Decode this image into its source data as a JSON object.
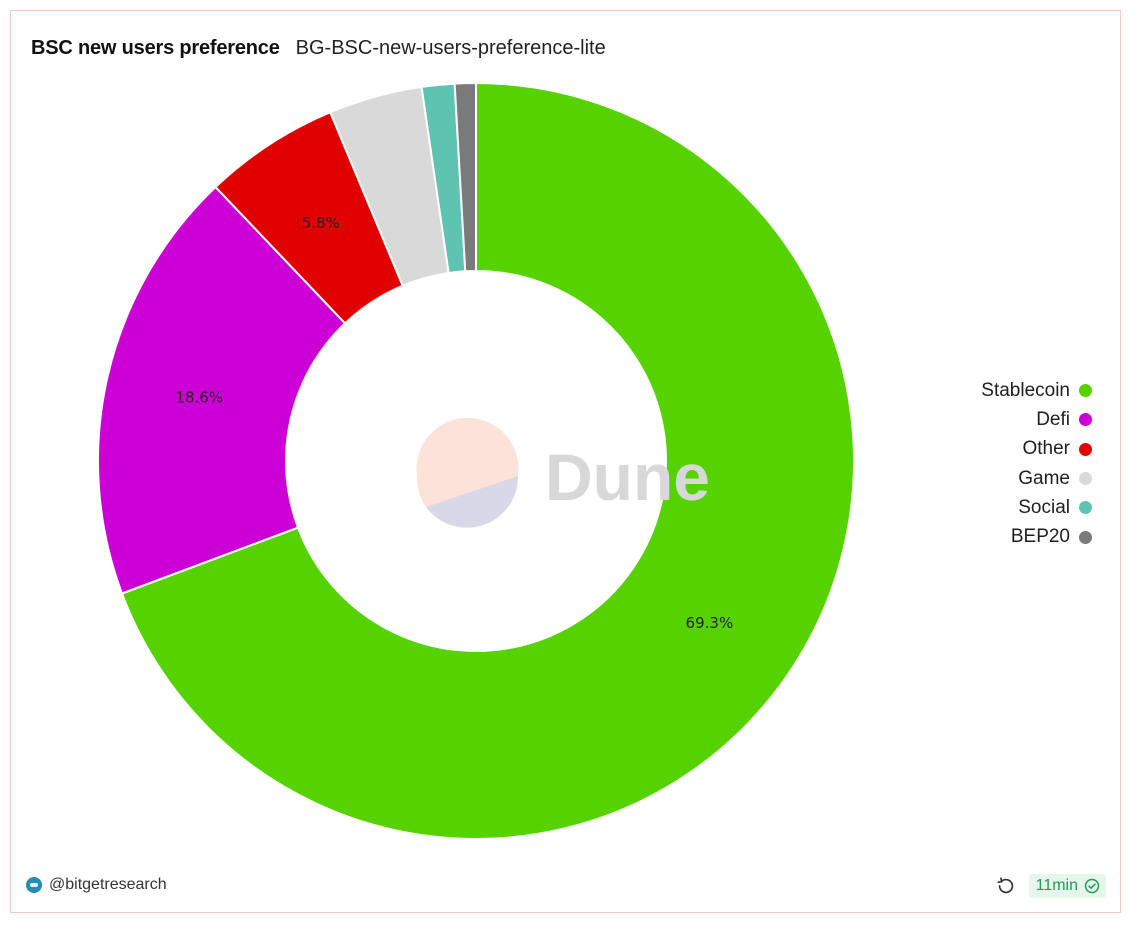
{
  "header": {
    "title": "BSC new users preference",
    "subtitle": "BG-BSC-new-users-preference-lite"
  },
  "watermark": {
    "text": "Dune"
  },
  "footer": {
    "author": "@bitgetresearch",
    "age": "11min"
  },
  "chart_data": {
    "type": "pie",
    "donut": true,
    "categories": [
      "Stablecoin",
      "Defi",
      "Other",
      "Game",
      "Social",
      "BEP20"
    ],
    "values": [
      69.3,
      18.6,
      5.8,
      4.0,
      1.4,
      0.9
    ],
    "data_labels": [
      "69.3%",
      "18.6%",
      "5.8%",
      "",
      "",
      ""
    ],
    "colors": [
      "#56d200",
      "#cc00d4",
      "#e10000",
      "#d9d9d9",
      "#5fc3b2",
      "#7a7a7a"
    ],
    "legend_position": "right",
    "start": "top",
    "direction": "clockwise"
  }
}
